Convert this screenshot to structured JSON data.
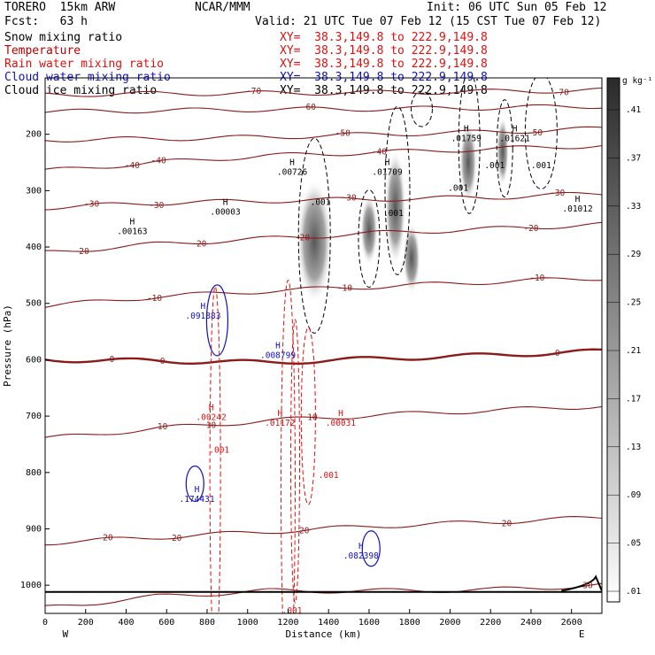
{
  "header": {
    "model": "TORERO  15km ARW",
    "org": "NCAR/MMM",
    "init": "Init: 06 UTC Sun 05 Feb 12",
    "fcst": "Fcst:   63 h",
    "valid": "Valid: 21 UTC Tue 07 Feb 12 (15 CST Tue 07 Feb 12)"
  },
  "legend": [
    {
      "label": "Snow mixing ratio",
      "color": "#000000",
      "xy": "XY=  38.3,149.8 to 222.9,149.8",
      "xy_color": "#e01010"
    },
    {
      "label": "Temperature",
      "color": "#c00000",
      "xy": "XY=  38.3,149.8 to 222.9,149.8",
      "xy_color": "#e01010"
    },
    {
      "label": "Rain water mixing ratio",
      "color": "#e01010",
      "xy": "XY=  38.3,149.8 to 222.9,149.8",
      "xy_color": "#e01010"
    },
    {
      "label": "Cloud water mixing ratio",
      "color": "#1010c0",
      "xy": "XY=  38.3,149.8 to 222.9,149.8",
      "xy_color": "#1010c0"
    },
    {
      "label": "Cloud ice mixing ratio",
      "color": "#000000",
      "xy": "XY=  38.3,149.8 to 222.9,149.8",
      "xy_color": "#000000"
    }
  ],
  "chart_data": {
    "type": "cross-section",
    "xlabel": "Distance (km)",
    "ylabel": "Pressure (hPa)",
    "xlim": [
      0,
      2750
    ],
    "ylim": [
      1050,
      100
    ],
    "x_ticks": [
      0,
      200,
      400,
      600,
      800,
      1000,
      1200,
      1400,
      1600,
      1800,
      2000,
      2200,
      2400,
      2600
    ],
    "y_ticks": [
      200,
      300,
      400,
      500,
      600,
      700,
      800,
      900,
      1000
    ],
    "x_end_labels": {
      "left": "W",
      "right": "E"
    },
    "colorbar": {
      "unit": "g kg⁻¹",
      "levels": [
        0.01,
        0.05,
        0.09,
        0.13,
        0.17,
        0.21,
        0.25,
        0.29,
        0.33,
        0.37,
        0.41
      ],
      "labels": [
        ".01",
        ".05",
        ".09",
        ".13",
        ".17",
        ".21",
        ".25",
        ".29",
        ".33",
        ".37",
        ".41"
      ]
    },
    "isotherms": [
      {
        "t": -70,
        "p": [
          130,
          128,
          127,
          126,
          124,
          122
        ],
        "labels": [
          {
            "x": 1030,
            "text": "-70"
          },
          {
            "x": 2550,
            "text": "-70"
          }
        ]
      },
      {
        "t": -60,
        "p": [
          160,
          158,
          156,
          155,
          153,
          150
        ],
        "labels": [
          {
            "x": 1300,
            "text": "-60"
          }
        ]
      },
      {
        "t": -50,
        "p": [
          210,
          208,
          205,
          200,
          196,
          190
        ],
        "labels": [
          {
            "x": 1470,
            "text": "-50"
          },
          {
            "x": 2420,
            "text": "-50"
          }
        ]
      },
      {
        "t": -40,
        "p": [
          265,
          250,
          238,
          232,
          226,
          220
        ],
        "labels": [
          {
            "x": 430,
            "text": "-40"
          },
          {
            "x": 560,
            "text": "-40"
          },
          {
            "x": 1650,
            "text": "-40"
          }
        ]
      },
      {
        "t": -30,
        "p": [
          330,
          322,
          318,
          315,
          312,
          305
        ],
        "labels": [
          {
            "x": 230,
            "text": "-30"
          },
          {
            "x": 550,
            "text": "-30"
          },
          {
            "x": 1500,
            "text": "-30"
          },
          {
            "x": 2530,
            "text": "-30"
          }
        ]
      },
      {
        "t": -20,
        "p": [
          410,
          395,
          385,
          375,
          368,
          360
        ],
        "labels": [
          {
            "x": 180,
            "text": "-20"
          },
          {
            "x": 760,
            "text": "-20"
          },
          {
            "x": 1270,
            "text": "-20"
          },
          {
            "x": 2400,
            "text": "-20"
          }
        ]
      },
      {
        "t": -10,
        "p": [
          505,
          488,
          478,
          470,
          462,
          455
        ],
        "labels": [
          {
            "x": 540,
            "text": "-10"
          },
          {
            "x": 1480,
            "text": "-10"
          },
          {
            "x": 2430,
            "text": "-10"
          }
        ]
      },
      {
        "t": 0,
        "p": [
          600,
          602,
          605,
          598,
          592,
          585
        ],
        "labels": [
          {
            "x": 330,
            "text": "0"
          },
          {
            "x": 580,
            "text": "0"
          },
          {
            "x": 2530,
            "text": "0"
          }
        ],
        "bold": true
      },
      {
        "t": 10,
        "p": [
          740,
          722,
          708,
          698,
          690,
          682
        ],
        "labels": [
          {
            "x": 580,
            "text": "10"
          },
          {
            "x": 820,
            "text": "10"
          },
          {
            "x": 1320,
            "text": "10"
          }
        ]
      },
      {
        "t": 20,
        "p": [
          925,
          915,
          905,
          895,
          888,
          880
        ],
        "labels": [
          {
            "x": 310,
            "text": "20"
          },
          {
            "x": 650,
            "text": "20"
          },
          {
            "x": 1280,
            "text": "20"
          },
          {
            "x": 2280,
            "text": "20"
          }
        ]
      },
      {
        "t": 30,
        "p": [
          1040,
          1020,
          1010,
          1010,
          1008,
          1000
        ],
        "labels": [
          {
            "x": 2680,
            "text": "30"
          }
        ]
      }
    ],
    "maxima": [
      {
        "x": 430,
        "p": 360,
        "type": "H",
        "value": ".00163",
        "color": "#000000"
      },
      {
        "x": 890,
        "p": 325,
        "type": "H",
        "value": ".00003",
        "color": "#000000"
      },
      {
        "x": 1220,
        "p": 255,
        "type": "H",
        "value": ".00726",
        "color": "#000000"
      },
      {
        "x": 1690,
        "p": 255,
        "type": "H",
        "value": ".01709",
        "color": "#000000"
      },
      {
        "x": 2080,
        "p": 195,
        "type": "H",
        "value": ".01759",
        "color": "#000000"
      },
      {
        "x": 2320,
        "p": 195,
        "type": "H",
        "value": ".01621",
        "color": "#000000"
      },
      {
        "x": 2630,
        "p": 320,
        "type": "H",
        "value": ".01012",
        "color": "#000000"
      },
      {
        "x": 780,
        "p": 510,
        "type": "H",
        "value": ".091883",
        "color": "#1010c0"
      },
      {
        "x": 1150,
        "p": 580,
        "type": "H",
        "value": ".008799",
        "color": "#1010c0"
      },
      {
        "x": 750,
        "p": 835,
        "type": "H",
        "value": ".174431",
        "color": "#1010c0"
      },
      {
        "x": 1560,
        "p": 935,
        "type": "H",
        "value": ".082398",
        "color": "#1010c0"
      },
      {
        "x": 820,
        "p": 690,
        "type": "H",
        "value": ".00242",
        "color": "#e01010"
      },
      {
        "x": 1160,
        "p": 700,
        "type": "H",
        "value": ".01172",
        "color": "#e01010"
      },
      {
        "x": 1460,
        "p": 700,
        "type": "H",
        "value": ".00031",
        "color": "#e01010"
      }
    ],
    "contour_labels": [
      {
        "x": 1360,
        "p": 325,
        "text": ".001",
        "color": "#000000"
      },
      {
        "x": 1720,
        "p": 345,
        "text": ".001",
        "color": "#000000"
      },
      {
        "x": 2040,
        "p": 300,
        "text": ".001",
        "color": "#000000"
      },
      {
        "x": 2220,
        "p": 260,
        "text": ".001",
        "color": "#000000"
      },
      {
        "x": 2450,
        "p": 260,
        "text": ".001",
        "color": "#000000"
      },
      {
        "x": 860,
        "p": 765,
        "text": ".001",
        "color": "#e01010"
      },
      {
        "x": 1400,
        "p": 810,
        "text": ".001",
        "color": "#e01010"
      },
      {
        "x": 1220,
        "p": 1050,
        "text": ".001",
        "color": "#e01010"
      }
    ]
  }
}
